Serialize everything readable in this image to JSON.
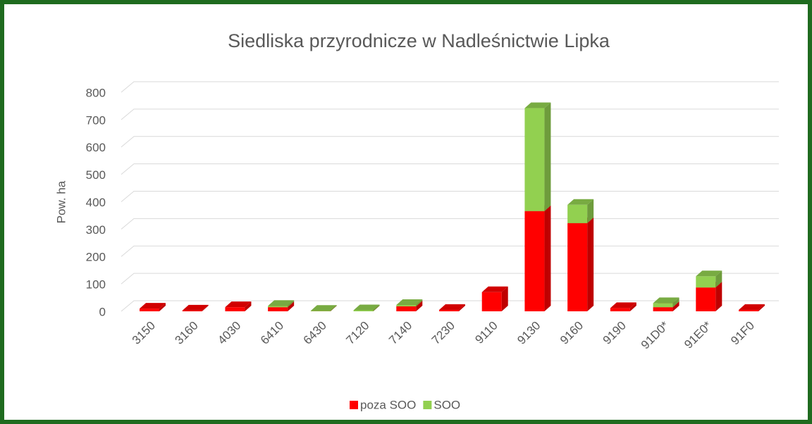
{
  "chart_data": {
    "type": "bar3d_stacked",
    "title": "Siedliska przyrodnicze w Nadleśnictwie Lipka",
    "ylabel": "Pow. ha",
    "categories": [
      "3150",
      "3160",
      "4030",
      "6410",
      "6430",
      "7120",
      "7140",
      "7230",
      "9110",
      "9130",
      "9160",
      "9190",
      "91D0*",
      "91E0*",
      "91F0"
    ],
    "series": [
      {
        "name": "poza SOO",
        "color": "#ff0000",
        "values": [
          10,
          3,
          15,
          15,
          0,
          0,
          18,
          5,
          70,
          366,
          322,
          12,
          15,
          87,
          5
        ]
      },
      {
        "name": "SOO",
        "color": "#92d050",
        "values": [
          0,
          0,
          0,
          5,
          2,
          4,
          5,
          0,
          0,
          376,
          67,
          0,
          15,
          41,
          0
        ]
      }
    ],
    "ylim": [
      0,
      800
    ],
    "yticks": [
      0,
      100,
      200,
      300,
      400,
      500,
      600,
      700,
      800
    ],
    "grid": true,
    "legend": "bottom"
  }
}
